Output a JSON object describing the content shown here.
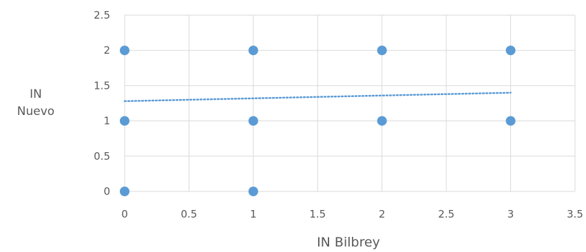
{
  "chart_data": {
    "type": "scatter",
    "title": "",
    "xlabel": "IN Bilbrey",
    "ylabel_lines": [
      "IN",
      "Nuevo"
    ],
    "xlim": [
      0,
      3.5
    ],
    "ylim": [
      0,
      2.5
    ],
    "x_ticks": [
      "0",
      "0.5",
      "1",
      "1.5",
      "2",
      "2.5",
      "3",
      "3.5"
    ],
    "y_ticks": [
      "0",
      "0.5",
      "1",
      "1.5",
      "2",
      "2.5"
    ],
    "grid": true,
    "legend": false,
    "marker_color": "#5b9bd5",
    "trendline_color": "#5b9bd5",
    "points": [
      {
        "x": 0,
        "y": 2
      },
      {
        "x": 0,
        "y": 1
      },
      {
        "x": 0,
        "y": 0
      },
      {
        "x": 1,
        "y": 2
      },
      {
        "x": 1,
        "y": 1
      },
      {
        "x": 1,
        "y": 0
      },
      {
        "x": 2,
        "y": 2
      },
      {
        "x": 2,
        "y": 1
      },
      {
        "x": 3,
        "y": 2
      },
      {
        "x": 3,
        "y": 1
      }
    ],
    "trendline": {
      "type": "linear",
      "x_range": [
        0,
        3
      ],
      "y_start": 1.28,
      "y_end": 1.4
    }
  }
}
